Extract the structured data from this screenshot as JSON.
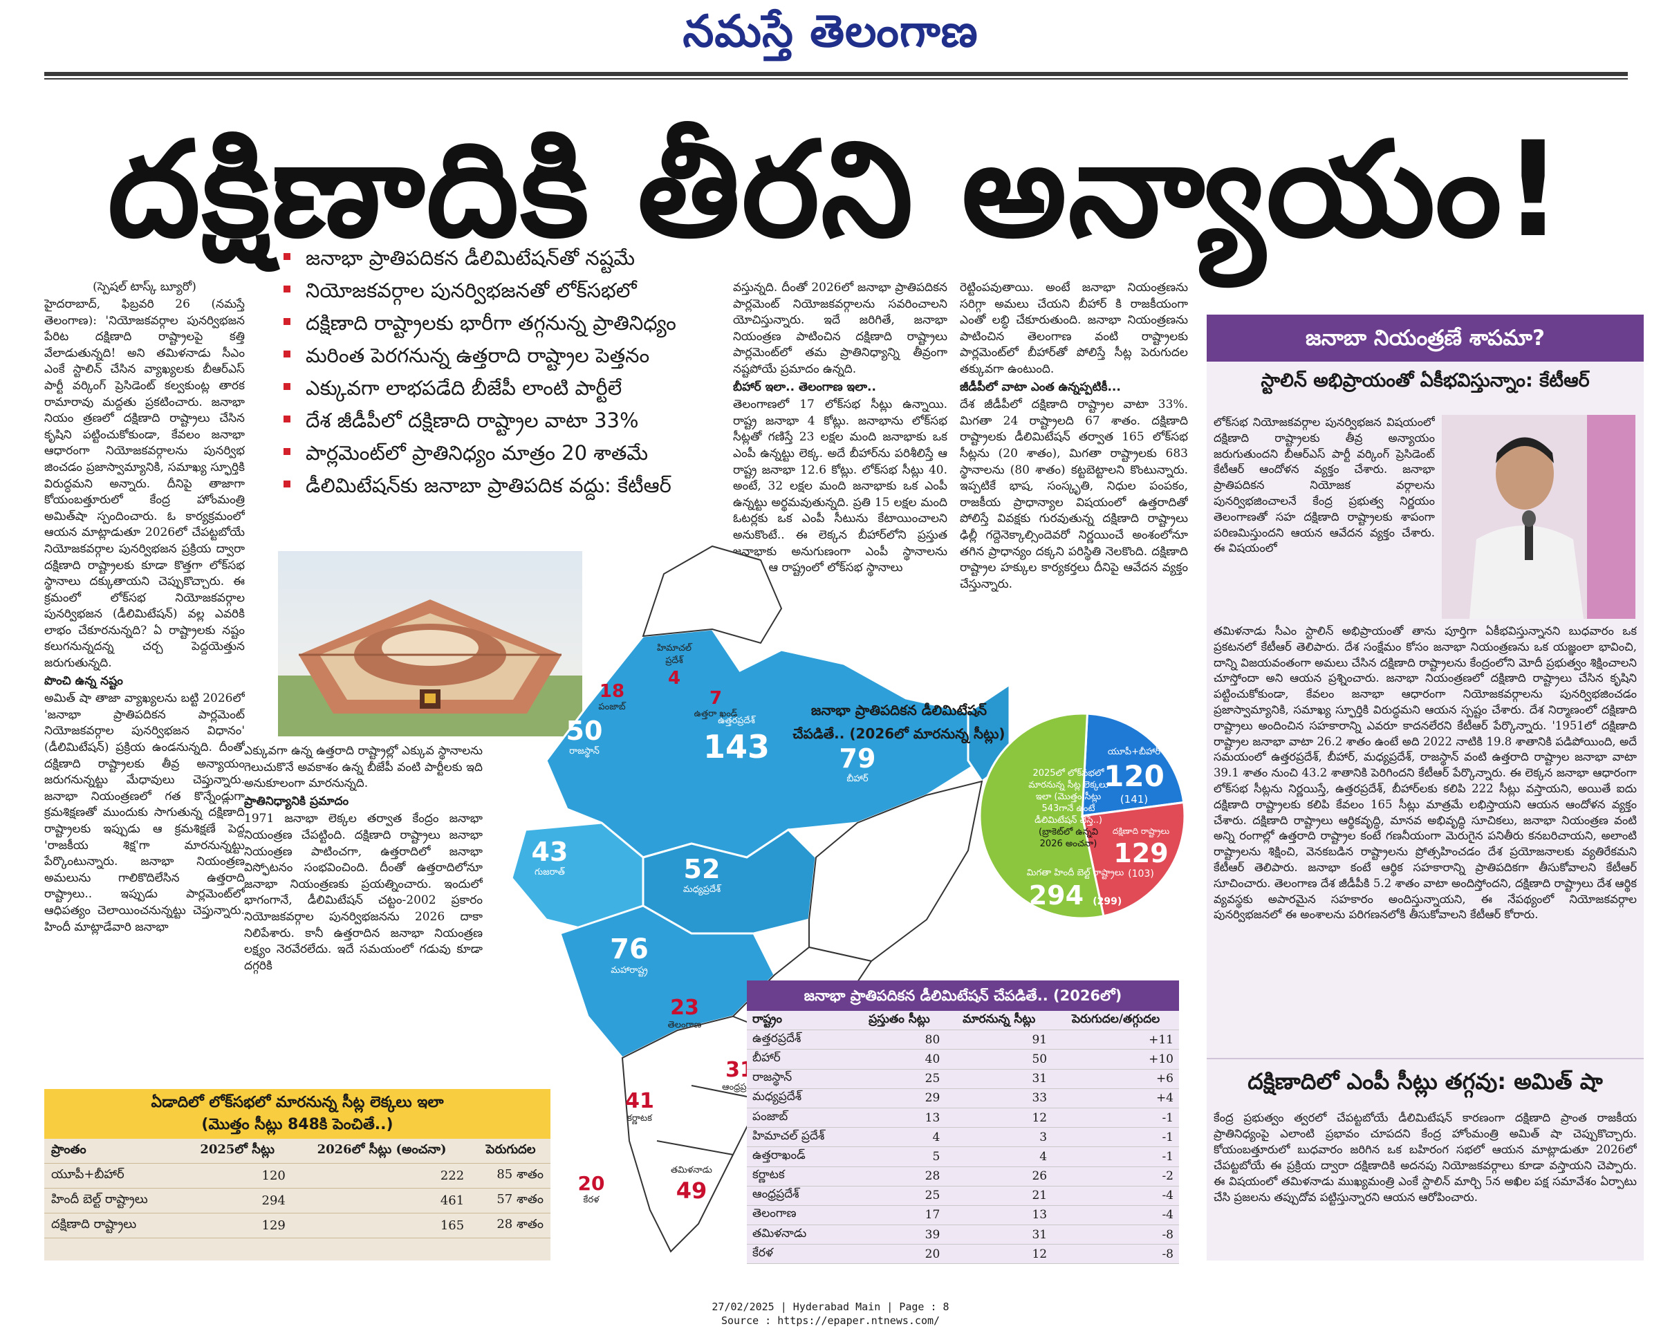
{
  "masthead": "నమస్తే తెలంగాణ",
  "headline": "దక్షిణాదికి తీరని అన్యాయం!",
  "byline": "(స్పెషల్ టాస్క్ బ్యూరో)",
  "bullets": [
    "జనాభా ప్రాతిపదికన డీలిమిటేషన్‌తో నష్టమే",
    "నియోజకవర్గాల పునర్విభజనతో లోక్‌సభలో",
    "దక్షిణాది రాష్ట్రాలకు భారీగా తగ్గనున్న ప్రాతినిధ్యం",
    "మరింత పెరగనున్న ఉత్తరాది రాష్ట్రాల పెత్తనం",
    "ఎక్కువగా లాభపడేది బీజేపీ లాంటి పార్టీలే",
    "దేశ జీడీపీలో దక్షిణాది రాష్ట్రాల వాటా 33%",
    "పార్లమెంట్‌లో ప్రాతినిధ్యం మాత్రం 20 శాతమే",
    "డీలిమిటేషన్‌కు జనాబా ప్రాతిపదిక వద్దు: కేటీఆర్"
  ],
  "col1": [
    "హైదరాబాద్, ఫిబ్రవరి 26 (నమస్తే తెలంగాణ): 'నియోజకవర్గాల పునర్విభజన పేరిట దక్షిణాది రాష్ట్రాలపై కత్తి వేలాడుతున్నది! అని తమిళనాడు సీఎం ఎంకే స్టాలిన్ చేసిన వ్యాఖ్యలకు బీఆర్‌ఎస్ పార్టీ వర్కింగ్ ప్రెసిడెంట్ కల్వకుంట్ల తారక రామారావు మద్దతు ప్రకటించారు. జనాభా నియం త్రణలో దక్షిణాది రాష్ట్రాలు చేసిన కృషిని పట్టించుకోకుండా, కేవలం జనాభా ఆధారంగా నియోజకవర్గాలను పునర్విభ జించడం ప్రజాస్వామ్యానికి, సమాఖ్య స్ఫూర్తికి విరుద్ధమని అన్నారు. దీనిపై తాజాగా కోయంబత్తూరులో కేంద్ర హోంమంత్రి అమిత్‌షా స్పందించారు. ఓ కార్యక్రమంలో ఆయన మాట్లాడుతూ 2026లో చేపట్టబోయే నియోజకవర్గాల పునర్విభజన ప్రక్రియ ద్వారా దక్షిణాది రాష్ట్రాలకు కూడా కొత్తగా లోక్‌సభ స్థానాలు దక్కుతాయని చెప్పుకొచ్చారు. ఈ క్రమంలో లోక్‌సభ నియోజకవర్గాల పునర్విభజన (డీలిమిటేషన్) వల్ల ఎవరికి లాభం చేకూరనున్నది? ఏ రాష్ట్రాలకు నష్టం కలుగనున్నదన్న చర్చ పెద్దయెత్తున జరుగుతున్నది.",
    "పొంచి ఉన్న నష్టం",
    "అమిత్ షా తాజా వ్యాఖ్యలను బట్టి 2026లో 'జనాభా ప్రాతిపదికన పార్లమెంట్ నియోజకవర్గాల పునర్విభజన విధానం' (డీలిమిటేషన్) ప్రక్రియ ఉండనున్నది. దీంతో దక్షిణాది రాష్ట్రాలకు తీవ్ర అన్యాయం జరుగనున్నట్టు మేధావులు చెప్తున్నారు. జనాభా నియంత్రణలో గత కొన్నేండ్లుగా క్రమశిక్షణతో ముందుకు సాగుతున్న దక్షిణాది రాష్ట్రాలకు ఇప్పుడు ఆ క్రమశిక్షణే పెద్ద 'రాజకీయ శిక్ష'గా మారనున్నట్టు పేర్కొంటున్నారు. జనాభా నియంత్రణ అమలును గాలికొదిలేసిన ఉత్తరాది రాష్ట్రాలు.. ఇప్పుడు పార్లమెంట్‌లో ఆధిపత్యం చెలాయించనున్నట్టు చెప్తున్నారు. హిందీ మాట్లాడేవారి జనాభా"
  ],
  "col2b": [
    "ఎక్కువగా ఉన్న ఉత్తరాది రాష్ట్రాల్లో ఎక్కువ స్థానాలను గెలుచుకొనే అవకాశం ఉన్న బీజేపీ వంటి పార్టీలకు ఇది అనుకూలంగా మారనున్నది.",
    "ప్రాతినిధ్యానికి ప్రమాదం",
    "1971 జనాభా లెక్కల తర్వాత కేంద్రం జనాభా నియంత్రణ చేపట్టింది. దక్షిణాది రాష్ట్రాలు జనాభా నియంత్రణ పాటించగా, ఉత్తరాదిలో జనాభా విస్ఫోటనం సంభవించింది. దీంతో ఉత్తరాదిలోనూ జనాభా నియంత్రణకు ప్రయత్నించారు. ఇందులో భాగంగానే, డీలిమిటేషన్ చట్టం-2002 ప్రకారం నియోజకవర్గాల పునర్విభజనను 2026 దాకా నిలిపేశారు. కానీ ఉత్తరాదిన జనాభా నియంత్రణ లక్ష్యం నెరవేరలేదు. ఇదే సమయంలో గడువు కూడా దగ్గరికి"
  ],
  "col3": [
    "వస్తున్నది. దీంతో 2026లో జనాభా ప్రాతిపదికన పార్లమెంట్ నియోజకవర్గాలను సవరించాలని యోచిస్తున్నారు. ఇదే జరిగితే, జనాభా నియంత్రణ పాటించిన దక్షిణాది రాష్ట్రాలు పార్లమెంట్‌లో తమ ప్రాతినిధ్యాన్ని తీవ్రంగా నష్టపోయే ప్రమాదం ఉన్నది.",
    "బీహార్ ఇలా.. తెలంగాణ ఇలా..",
    "తెలంగాణలో 17 లోక్‌సభ సీట్లు ఉన్నాయి. రాష్ట్ర జనాభా 4 కోట్లు. జనాభాను లోక్‌సభ సీట్లతో గణిస్తే 23 లక్షల మంది జనాభాకు ఒక ఎంపీ ఉన్నట్టు లెక్క. అదే బీహార్‌ను పరిశీలిస్తే ఆ రాష్ట్ర జనాభా 12.6 కోట్లు. లోక్‌సభ సీట్లు 40. అంటే, 32 లక్షల మంది జనాభాకు ఒక ఎంపీ ఉన్నట్టు అర్థమవుతున్నది. ప్రతి 15 లక్షల మంది ఓటర్లకు ఒక ఎంపీ సీటును కేటాయించాలని అనుకొంటే.. ఈ లెక్కన బీహార్‌లోని ప్రస్తుత జనాభాకు అనుగుణంగా ఎంపీ స్థానాలను సవరిస్తే ఆ రాష్ట్రంలో లోక్‌సభ స్థానాలు"
  ],
  "col4": [
    "రెట్టింపవుతాయి. అంటే జనాభా నియంత్రణను సరిగ్గా అమలు చేయని బీహార్ కి రాజకీయంగా ఎంతో లబ్ధి చేకూరుతుంది. జనాభా నియంత్రణను పాటించిన తెలంగాణ వంటి రాష్ట్రాలకు పార్లమెంట్‌లో బీహార్‌తో పోలిస్తే సీట్ల పెరుగుదల తక్కువగా ఉంటుంది.",
    "జీడీపీలో వాటా ఎంత ఉన్నప్పటికీ...",
    "దేశ జీడీపీలో దక్షిణాది రాష్ట్రాల వాటా 33%. మిగతా 24 రాష్ట్రాలది 67 శాతం. దక్షిణాది రాష్ట్రాలకు డీలిమిటేషన్ తర్వాత 165 లోక్‌సభ సీట్లను (20 శాతం), మిగతా రాష్ట్రాలకు 683 స్థానాలను (80 శాతం) కట్టబెట్టాలని కొంటున్నారు. ఇప్పటికే భాష, సంస్కృతి, నిధుల పంపకం, రాజకీయ ప్రాధాన్యాల విషయంలో ఉత్తరాదితో పోలిస్తే వివక్షకు గురవుతున్న దక్షిణాది రాష్ట్రాలు ఢిల్లీ గద్దెనెక్కాల్సిందెవరో నిర్ణయించే అంశంలోనూ తగిన ప్రాధాన్యం దక్కని పరిస్థితి నెలకొంది. దక్షిణాది రాష్ట్రాల హక్కుల కార్యకర్తలు దీనిపై ఆవేదన వ్యక్తం చేస్తున్నారు."
  ],
  "table1": {
    "title": "ఏడాదిలో లోక్‌సభలో మారనున్న సీట్ల లెక్కలు ఇలా",
    "subtitle": "(మొత్తం సీట్లు 848కి పెంచితే..)",
    "headers": [
      "ప్రాంతం",
      "2025లో సీట్లు",
      "2026లో సీట్లు (అంచనా)",
      "పెరుగుదల"
    ],
    "rows": [
      [
        "యూపీ+బీహార్",
        "120",
        "222",
        "85 శాతం"
      ],
      [
        "హిందీ బెల్ట్ రాష్ట్రాలు",
        "294",
        "461",
        "57 శాతం"
      ],
      [
        "దక్షిణాది రాష్ట్రాలు",
        "129",
        "165",
        "28 శాతం"
      ]
    ]
  },
  "map": {
    "caption1": "జనాభా ప్రాతిపదికన డీలిమిటేషన్",
    "caption2": "చేపడితే.. (2026లో మారనున్న సీట్లు)",
    "states": [
      {
        "value": "50",
        "name": "రాజస్థాన్"
      },
      {
        "value": "143",
        "name": "ఉత్తరప్రదేశ్"
      },
      {
        "value": "79",
        "name": "బీహార్"
      },
      {
        "value": "43",
        "name": "గుజరాత్"
      },
      {
        "value": "52",
        "name": "మధ్యప్రదేశ్"
      },
      {
        "value": "76",
        "name": "మహారాష్ట్ర"
      }
    ],
    "red": [
      {
        "value": "18",
        "name": "పంజాబ్"
      },
      {
        "value": "4",
        "name": "హిమాచల్ ప్రదేశ్"
      },
      {
        "value": "7",
        "name": "ఉత్తరా ఖండ్"
      },
      {
        "value": "23",
        "name": "తెలంగాణ"
      },
      {
        "value": "31",
        "name": "ఆంధ్రప్రదేశ్"
      },
      {
        "value": "41",
        "name": "కర్ణాటక"
      },
      {
        "value": "20",
        "name": "కేరళ"
      },
      {
        "value": "49",
        "name": "తమిళనాడు"
      }
    ]
  },
  "pie": {
    "center": "2025లో లోక్‌సభలో మారనున్న సీట్ల లెక్కలు ఇలా (మొత్తం సీట్లు 543గానే ఉంటే డీలిమిటేషన్ చేస్తే..)",
    "center_note": "(బ్రాకెట్‌లో ఉన్నవి 2026 అంచనా)",
    "colors": {
      "up_bihar": "#1f7ad6",
      "south": "#e04b55",
      "hindi": "#8cc63f"
    },
    "slices": [
      {
        "label": "యూపీ+బీహార్",
        "value": "120",
        "prev": "(141)"
      },
      {
        "label": "దక్షిణాది రాష్ట్రాలు",
        "value": "129",
        "prev": "(103)"
      },
      {
        "label": "మిగతా హిందీ బెల్ట్ రాష్ట్రాలు",
        "value": "294",
        "prev": "(299)"
      }
    ]
  },
  "table2": {
    "title": "జనాభా ప్రాతిపదికన డీలిమిటేషన్ చేపడితే.. (2026లో)",
    "headers": [
      "రాష్ట్రం",
      "ప్రస్తుతం సీట్లు",
      "మారనున్న సీట్లు",
      "పెరుగుదల/తగ్గుదల"
    ],
    "rows": [
      [
        "ఉత్తరప్రదేశ్",
        "80",
        "91",
        "+11"
      ],
      [
        "బీహార్",
        "40",
        "50",
        "+10"
      ],
      [
        "రాజస్థాన్",
        "25",
        "31",
        "+6"
      ],
      [
        "మధ్యప్రదేశ్",
        "29",
        "33",
        "+4"
      ],
      [
        "పంజాబ్",
        "13",
        "12",
        "-1"
      ],
      [
        "హిమాచల్ ప్రదేశ్",
        "4",
        "3",
        "-1"
      ],
      [
        "ఉత్తరాఖండ్",
        "5",
        "4",
        "-1"
      ],
      [
        "కర్ణాటక",
        "28",
        "26",
        "-2"
      ],
      [
        "ఆంధ్రప్రదేశ్",
        "25",
        "21",
        "-4"
      ],
      [
        "తెలంగాణ",
        "17",
        "13",
        "-4"
      ],
      [
        "తమిళనాడు",
        "39",
        "31",
        "-8"
      ],
      [
        "కేరళ",
        "20",
        "12",
        "-8"
      ]
    ]
  },
  "sidebar": {
    "banner": "జనాబా నియంత్రణే శాపమా?",
    "heading": "స్టాలిన్ అభిప్రాయంతో ఏకీభవిస్తున్నాం: కేటీఆర్",
    "body": "లోక్‌సభ నియోజకవర్గాల పునర్విభజన విషయంలో దక్షిణాది రాష్ట్రాలకు తీవ్ర అన్యాయం జరుగుతుందని బీఆర్‌ఎస్ పార్టీ వర్కింగ్ ప్రెసిడెంట్ కేటీఆర్ ఆందోళన వ్యక్తం చేశారు. జనాభా ప్రాతిపదికన నియోజక వర్గాలను పునర్విభజించాలనే కేంద్ర ప్రభుత్వ నిర్ణయం తెలంగాణతో సహ దక్షిణాది రాష్ట్రాలకు శాపంగా పరిణమిస్తుందని ఆయన ఆవేదన వ్యక్తం చేశారు. ఈ విషయంలో తమిళనాడు సీఎం స్టాలిన్ అభిప్రాయంతో తాను పూర్తిగా ఏకీభవిస్తున్నానని బుధవారం ఒక ప్రకటనలో కేటీఆర్ తెలిపారు. దేశ సంక్షేమం కోసం జనాభా నియంత్రణను ఒక యజ్ఞంలా భావించి, దాన్ని విజయవంతంగా అమలు చేసిన దక్షిణాది రాష్ట్రాలను కేంద్రంలోని మోదీ ప్రభుత్వం శిక్షించాలని చూస్తోందా అని ఆయన ప్రశ్నించారు. జనాభా నియంత్రణలో దక్షిణాది రాష్ట్రాలు చేసిన కృషిని పట్టించుకోకుండా, కేవలం జనాభా ఆధారంగా నియోజకవర్గాలను పునర్విభజించడం ప్రజాస్వామ్యానికి, సమాఖ్య స్ఫూర్తికి విరుద్ధమని ఆయన స్పష్టం చేశారు. దేశ నిర్మాణంలో దక్షిణాది రాష్ట్రాలు అందించిన సహకారాన్ని ఎవరూ కాదనలేరని కేటీఆర్ పేర్కొన్నారు. '1951లో దక్షిణాది రాష్ట్రాల జనాభా వాటా 26.2 శాతం ఉంటే అది 2022 నాటికి 19.8 శాతానికి పడిపోయింది, అదే సమయంలో ఉత్తరప్రదేశ్, బీహార్, మధ్యప్రదేశ్, రాజస్థాన్ వంటి ఉత్తరాది రాష్ట్రాల జనాభా వాటా 39.1 శాతం నుంచి 43.2 శాతానికి పెరిగిందని కేటీఆర్ పేర్కొన్నారు. ఈ లెక్కన జనాభా ఆధారంగా లోక్‌సభ సీట్లను నిర్ణయిస్తే, ఉత్తరప్రదేశ్, బీహార్‌లకు కలిపి 222 సీట్లు వస్తాయని, అయితే ఐదు దక్షిణాది రాష్ట్రాలకు కలిపి కేవలం 165 సీట్లు మాత్రమే లభిస్తాయని ఆయన ఆందోళన వ్యక్తం చేశారు. దక్షిణాది రాష్ట్రాలు ఆర్థికవృద్ధి, మానవ అభివృద్ధి సూచికలు, జనాభా నియంత్రణ వంటి అన్ని రంగాల్లో ఉత్తరాది రాష్ట్రాల కంటే గణనీయంగా మెరుగైన పనితీరు కనబరిచాయని, అలాంటి రాష్ట్రాలను శిక్షించి, వెనకబడిన రాష్ట్రాలను ప్రోత్సహించడం దేశ ప్రయోజనాలకు వ్యతిరేకమని కేటీఆర్ తెలిపారు. జనాభా కంటే ఆర్థిక సహకారాన్ని ప్రాతిపదికగా తీసుకోవాలని కేటీఆర్ సూచించారు. తెలంగాణ దేశ జీడీపీకి 5.2 శాతం వాటా అందిస్తోందని, దక్షిణాది రాష్ట్రాలు దేశ ఆర్థిక వ్యవస్థకు అపారమైన సహకారం అందిస్తున్నాయని, ఈ నేపథ్యంలో నియోజకవర్గాల పునర్విభజనలో ఈ అంశాలను పరిగణనలోకి తీసుకోవాలని కేటీఆర్ కోరారు.",
    "heading2": "దక్షిణాదిలో ఎంపీ సీట్లు తగ్గవు: అమిత్ షా",
    "body2": "కేంద్ర ప్రభుత్వం త్వరలో చేపట్టబోయే డీలిమిటేషన్ కారణంగా దక్షిణాది ప్రాంత రాజకీయ ప్రాతినిధ్యంపై ఎలాంటి ప్రభావం చూపదని కేంద్ర హోంమంత్రి అమిత్ షా చెప్పుకొచ్చారు. కోయంబత్తూరులో బుధవారం జరిగిన ఒక బహిరంగ సభలో ఆయన మాట్లాడుతూ 2026లో చేపట్టబోయే ఈ ప్రక్రియ ద్వారా దక్షిణాదికి అదనపు నియోజకవర్గాలు కూడా వస్తాయని చెప్పారు. ఈ విషయంలో తమిళనాడు ముఖ్యమంత్రి ఎంకే స్టాలిన్ మార్చి 5న అఖిల పక్ష సమావేశం ఏర్పాటు చేసి ప్రజలను తప్పుదోవ పట్టిస్తున్నారని ఆయన ఆరోపించారు."
  },
  "footer": {
    "line1": "27/02/2025 | Hyderabad Main | Page : 8",
    "line2": "Source : https://epaper.ntnews.com/"
  }
}
